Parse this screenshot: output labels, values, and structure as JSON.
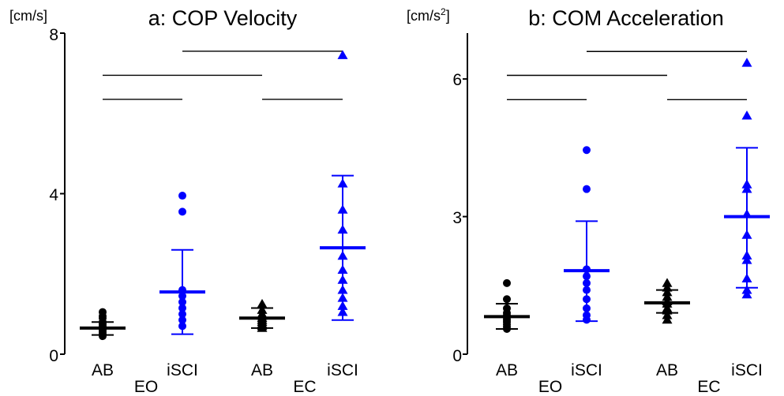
{
  "colors": {
    "AB": "#000000",
    "iSCI": "#0000ff",
    "axis": "#000000"
  },
  "condition_labels": [
    "EO",
    "EC"
  ],
  "charts": [
    {
      "unit_main": "[cm/s]",
      "unit_sup": "",
      "unit_tail": "",
      "title": "a: COP Velocity",
      "ylim": [
        0,
        8
      ],
      "yticks": [
        "0",
        "4",
        "8"
      ]
    },
    {
      "unit_main": "[cm/s",
      "unit_sup": "2",
      "unit_tail": "]",
      "title": "b: COM Acceleration",
      "ylim": [
        0,
        7
      ],
      "yticks": [
        "0",
        "3",
        "6"
      ]
    }
  ],
  "chart_data": [
    {
      "type": "scatter",
      "title": "a: COP Velocity",
      "ylabel": "[cm/s]",
      "ylim": [
        0,
        8
      ],
      "yticks": [
        0,
        4,
        8
      ],
      "categories": [
        "AB",
        "iSCI",
        "AB",
        "iSCI"
      ],
      "conditions": [
        "EO",
        "EO",
        "EC",
        "EC"
      ],
      "groups": [
        {
          "name": "AB",
          "condition": "EO",
          "marker": "circle",
          "color": "#000000",
          "mean": 0.65,
          "sd": [
            0.48,
            0.8
          ],
          "points": [
            1.05,
            0.95,
            0.9,
            0.8,
            0.75,
            0.7,
            0.65,
            0.6,
            0.55,
            0.5,
            0.45
          ]
        },
        {
          "name": "iSCI",
          "condition": "EO",
          "marker": "circle",
          "color": "#0000ff",
          "mean": 1.55,
          "sd": [
            0.5,
            2.6
          ],
          "points": [
            3.95,
            3.55,
            1.6,
            1.45,
            1.3,
            1.15,
            1.0,
            0.85,
            0.7
          ]
        },
        {
          "name": "AB",
          "condition": "EC",
          "marker": "triangle",
          "color": "#000000",
          "mean": 0.9,
          "sd": [
            0.65,
            1.15
          ],
          "points": [
            1.25,
            1.1,
            1.0,
            0.95,
            0.9,
            0.85,
            0.8,
            0.75,
            0.7,
            0.65
          ]
        },
        {
          "name": "iSCI",
          "condition": "EC",
          "marker": "triangle",
          "color": "#0000ff",
          "mean": 2.65,
          "sd": [
            0.85,
            4.45
          ],
          "points": [
            7.45,
            4.25,
            3.6,
            3.1,
            2.45,
            2.1,
            1.85,
            1.6,
            1.4,
            1.2,
            1.05
          ]
        }
      ],
      "significance_bars": [
        {
          "from": 0,
          "to": 1,
          "y": 6.35
        },
        {
          "from": 0,
          "to": 2,
          "y": 6.95
        },
        {
          "from": 2,
          "to": 3,
          "y": 6.35
        },
        {
          "from": 1,
          "to": 3,
          "y": 7.55
        }
      ]
    },
    {
      "type": "scatter",
      "title": "b: COM Acceleration",
      "ylabel": "[cm/s2]",
      "ylim": [
        0,
        7
      ],
      "yticks": [
        0,
        3,
        6
      ],
      "categories": [
        "AB",
        "iSCI",
        "AB",
        "iSCI"
      ],
      "conditions": [
        "EO",
        "EO",
        "EC",
        "EC"
      ],
      "groups": [
        {
          "name": "AB",
          "condition": "EO",
          "marker": "circle",
          "color": "#000000",
          "mean": 0.82,
          "sd": [
            0.55,
            1.1
          ],
          "points": [
            1.55,
            1.2,
            1.0,
            0.9,
            0.85,
            0.8,
            0.75,
            0.7,
            0.65,
            0.6,
            0.55
          ]
        },
        {
          "name": "iSCI",
          "condition": "EO",
          "marker": "circle",
          "color": "#0000ff",
          "mean": 1.82,
          "sd": [
            0.72,
            2.9
          ],
          "points": [
            4.45,
            3.6,
            1.85,
            1.7,
            1.55,
            1.4,
            1.2,
            1.0,
            0.85,
            0.75
          ]
        },
        {
          "name": "AB",
          "condition": "EC",
          "marker": "triangle",
          "color": "#000000",
          "mean": 1.12,
          "sd": [
            0.9,
            1.4
          ],
          "points": [
            1.55,
            1.45,
            1.35,
            1.25,
            1.15,
            1.1,
            1.0,
            0.95,
            0.85,
            0.75
          ]
        },
        {
          "name": "iSCI",
          "condition": "EC",
          "marker": "triangle",
          "color": "#0000ff",
          "mean": 3.0,
          "sd": [
            1.45,
            4.5
          ],
          "points": [
            6.35,
            5.2,
            3.7,
            3.6,
            3.05,
            2.6,
            2.15,
            2.05,
            1.65,
            1.4,
            1.3
          ]
        }
      ],
      "significance_bars": [
        {
          "from": 0,
          "to": 1,
          "y": 5.55
        },
        {
          "from": 0,
          "to": 2,
          "y": 6.08
        },
        {
          "from": 2,
          "to": 3,
          "y": 5.55
        },
        {
          "from": 1,
          "to": 3,
          "y": 6.6
        }
      ]
    }
  ]
}
